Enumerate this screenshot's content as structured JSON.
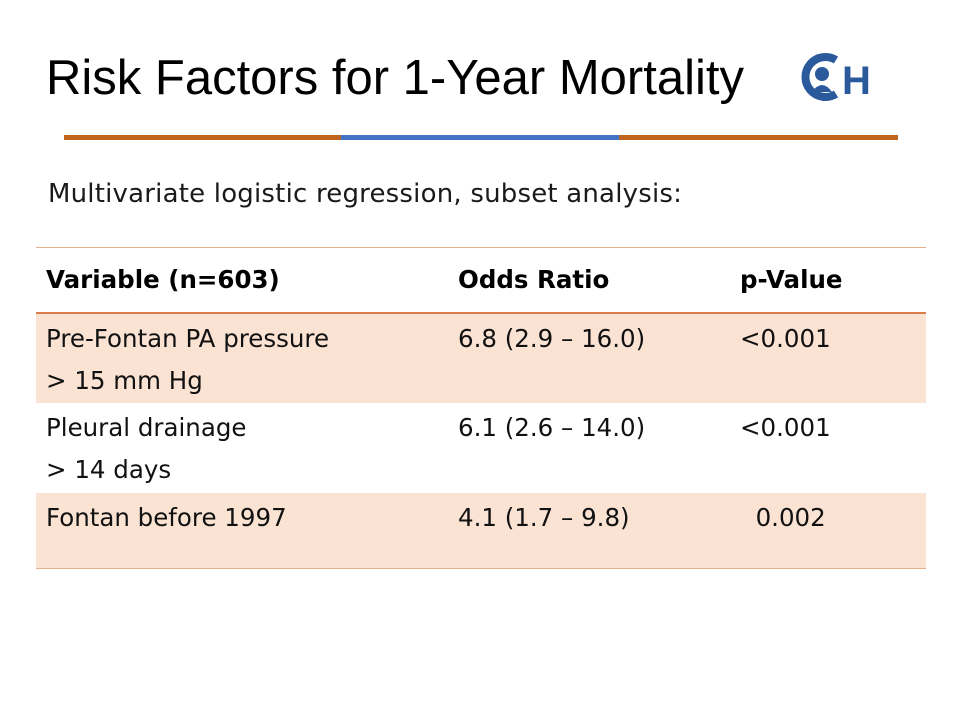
{
  "slide": {
    "title": "Risk Factors for 1-Year Mortality",
    "subtitle": "Multivariate logistic regression, subset analysis:",
    "logo": {
      "icon": "chop-logo-icon",
      "letter": "H",
      "color": "#2a5a9c"
    },
    "rule_colors": [
      "#c0651e",
      "#4472c4",
      "#c0651e"
    ]
  },
  "table": {
    "headers": [
      "Variable (n=603)",
      "Odds Ratio",
      "p-Value"
    ],
    "rows": [
      {
        "variable_line1": "Pre-Fontan PA pressure",
        "variable_line2": "> 15 mm Hg",
        "odds_ratio": "6.8 (2.9 – 16.0)",
        "p_value": "<0.001",
        "shade": "#fbe3d4"
      },
      {
        "variable_line1": "Pleural drainage",
        "variable_line2": "> 14 days",
        "odds_ratio": "6.1 (2.6 – 14.0)",
        "p_value": "<0.001",
        "shade": "#ffffff"
      },
      {
        "variable_line1": "Fontan before 1997",
        "variable_line2": "",
        "odds_ratio": "4.1 (1.7 – 9.8)",
        "p_value": "  0.002",
        "shade": "#fbe3d4"
      }
    ]
  }
}
